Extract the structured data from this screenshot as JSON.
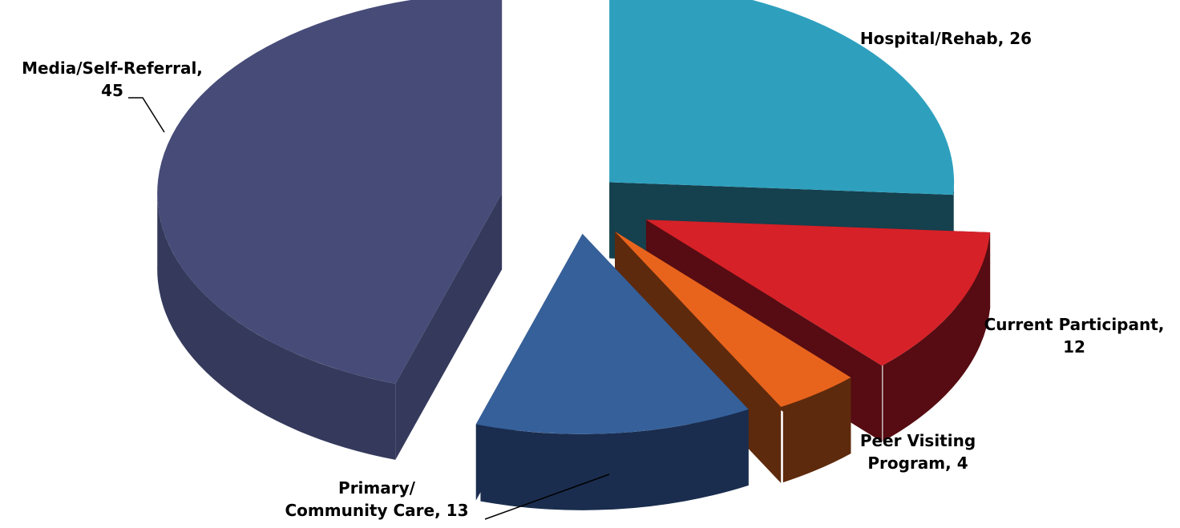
{
  "chart_data": {
    "type": "pie",
    "style": "3d-exploded",
    "slices": [
      {
        "label_lines": [
          "Hospital/Rehab, 26"
        ],
        "category": "Hospital/Rehab",
        "value": 26,
        "color": "#2EA0BE",
        "side_color": "#15404E"
      },
      {
        "label_lines": [
          "Current Participant,",
          "12"
        ],
        "category": "Current Participant",
        "value": 12,
        "color": "#D62128",
        "side_color": "#560C12"
      },
      {
        "label_lines": [
          "Peer Visiting",
          "Program, 4"
        ],
        "category": "Peer Visiting Program",
        "value": 4,
        "color": "#E8641D",
        "side_color": "#5E2A0D"
      },
      {
        "label_lines": [
          "Primary/",
          "Community Care, 13"
        ],
        "category": "Primary/Community Care",
        "value": 13,
        "color": "#36609A",
        "side_color": "#1A2D4E"
      },
      {
        "label_lines": [
          "Media/Self-Referral,",
          "45"
        ],
        "category": "Media/Self-Referral",
        "value": 45,
        "color": "#464B78",
        "side_color": "#353A5C"
      }
    ]
  }
}
